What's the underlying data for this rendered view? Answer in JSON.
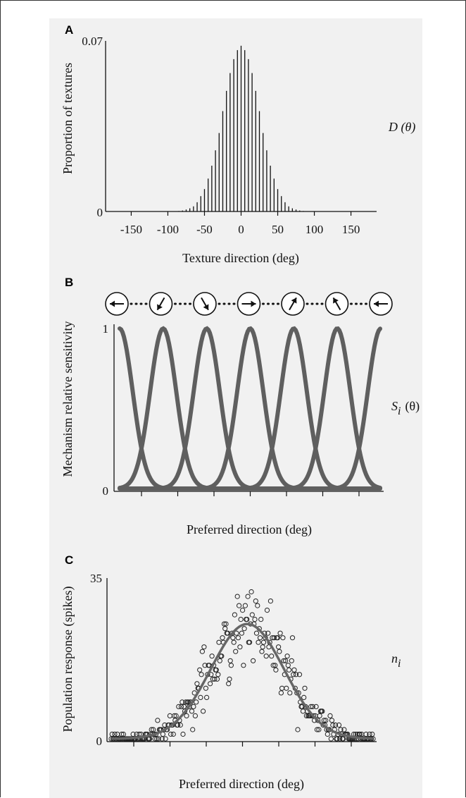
{
  "panels": {
    "a": {
      "letter": "A",
      "side_label": "D (θ)",
      "chart_data": {
        "type": "bar",
        "xlabel": "Texture direction (deg)",
        "ylabel": "Proportion of textures",
        "xlim": [
          -185,
          185
        ],
        "ylim": [
          0,
          0.07
        ],
        "xticks": [
          "-150",
          "-100",
          "-50",
          "0",
          "50",
          "100",
          "150"
        ],
        "yticks": [
          "0",
          "0.07"
        ],
        "bar_spacing": 5,
        "distribution": {
          "shape": "gaussian",
          "mean": 0,
          "sd": 25,
          "peak": 0.068
        },
        "x": [
          -90,
          -85,
          -80,
          -75,
          -70,
          -65,
          -60,
          -55,
          -50,
          -45,
          -40,
          -35,
          -30,
          -25,
          -20,
          -15,
          -10,
          -5,
          0,
          5,
          10,
          15,
          20,
          25,
          30,
          35,
          40,
          45,
          50,
          55,
          60,
          65,
          70,
          75,
          80,
          85,
          90
        ],
        "values": [
          0.0001,
          0.0002,
          0.0004,
          0.0008,
          0.0013,
          0.0021,
          0.0038,
          0.0063,
          0.0092,
          0.0135,
          0.0188,
          0.0251,
          0.0322,
          0.0412,
          0.0495,
          0.0568,
          0.0625,
          0.0662,
          0.068,
          0.0662,
          0.0625,
          0.0568,
          0.0495,
          0.0412,
          0.0322,
          0.0251,
          0.0188,
          0.0135,
          0.0092,
          0.0063,
          0.0038,
          0.0021,
          0.0013,
          0.0008,
          0.0004,
          0.0002,
          0.0001
        ]
      }
    },
    "b": {
      "letter": "B",
      "side_label_main": "S",
      "side_label_sub": "i",
      "side_label_arg": "(θ)",
      "arrow_icons": [
        "left-arrow-icon",
        "down-left-arrow-icon",
        "down-right-arrow-icon",
        "right-arrow-icon",
        "up-right-arrow-icon",
        "up-left-arrow-icon",
        "left-arrow-icon"
      ],
      "arrow_angles_deg": [
        180,
        240,
        300,
        0,
        60,
        120,
        180
      ],
      "chart_data": {
        "type": "line",
        "xlabel": "Preferred direction (deg)",
        "ylabel": "Mechanism relative sensitivity",
        "ylim": [
          0,
          1
        ],
        "yticks": [
          "0",
          "1"
        ],
        "n_xticks": 7,
        "series_color": "#5f5f5f",
        "peaks_index": [
          0,
          1,
          2,
          3,
          4,
          5,
          6
        ],
        "sigma_in_spacing": 0.45
      }
    },
    "c": {
      "letter": "C",
      "side_label_main": "n",
      "side_label_sub": "i",
      "chart_data": {
        "type": "scatter",
        "xlabel": "Preferred direction (deg)",
        "ylabel": "Population response (spikes)",
        "ylim": [
          0,
          35
        ],
        "yticks": [
          "0",
          "35"
        ],
        "n_xticks": 7,
        "curve": {
          "peak": 25,
          "center_frac": 0.52,
          "sd_frac": 0.14
        },
        "n_points": 300,
        "seed": 7
      }
    }
  }
}
